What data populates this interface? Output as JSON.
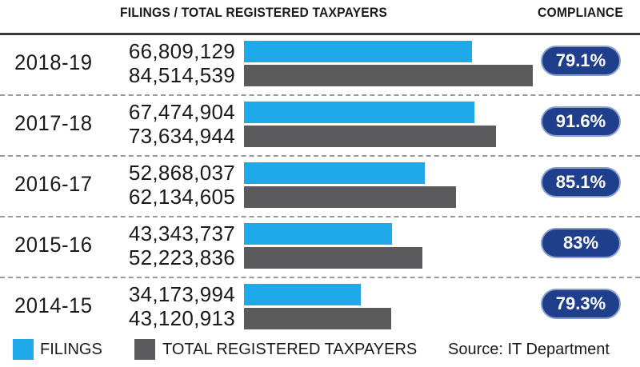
{
  "chart_data": {
    "type": "bar",
    "orientation": "horizontal",
    "title": "FILINGS / TOTAL REGISTERED TAXPAYERS",
    "compliance_header": "COMPLIANCE",
    "categories": [
      "2018-19",
      "2017-18",
      "2016-17",
      "2015-16",
      "2014-15"
    ],
    "series": [
      {
        "name": "FILINGS",
        "color": "#1da9ea",
        "values": [
          66809129,
          67474904,
          52868037,
          43343737,
          34173994
        ],
        "labels": [
          "66,809,129",
          "67,474,904",
          "52,868,037",
          "43,343,737",
          "34,173,994"
        ]
      },
      {
        "name": "TOTAL REGISTERED TAXPAYERS",
        "color": "#5b5b5e",
        "values": [
          84514539,
          73634944,
          62134605,
          52223836,
          43120913
        ],
        "labels": [
          "84,514,539",
          "73,634,944",
          "62,134,605",
          "52,223,836",
          "43,120,913"
        ]
      }
    ],
    "compliance": [
      "79.1%",
      "91.6%",
      "85.1%",
      "83%",
      "79.3%"
    ],
    "compliance_color": "#1f3f8c",
    "source": "Source: IT Department",
    "legend_position": "bottom-left"
  }
}
